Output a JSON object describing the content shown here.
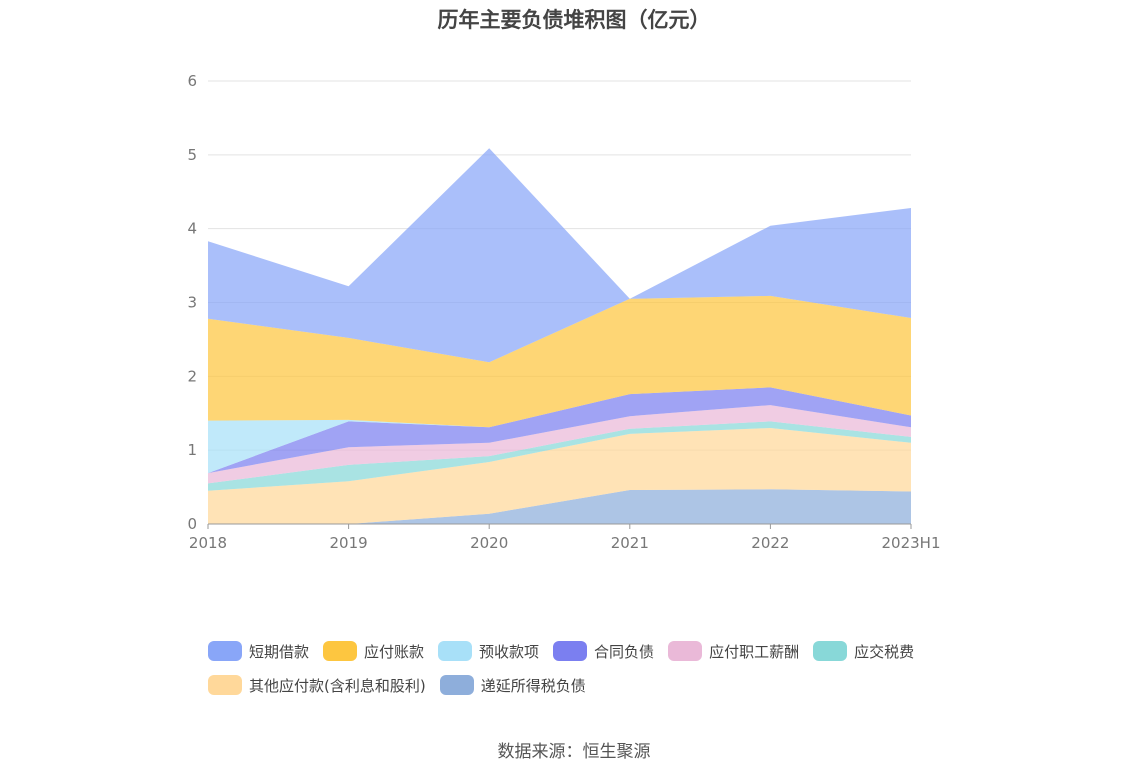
{
  "chart_data": {
    "type": "area",
    "title": "历年主要负债堆积图（亿元）",
    "categories": [
      "2018",
      "2019",
      "2020",
      "2021",
      "2022",
      "2023H1"
    ],
    "ylim": [
      0,
      6
    ],
    "yticks": [
      0,
      1,
      2,
      3,
      4,
      5,
      6
    ],
    "stacked": true,
    "grid": true,
    "legend_position": "bottom",
    "series": [
      {
        "name": "递延所得税负债",
        "color": "#8eaedb",
        "values": [
          0.0,
          0.0,
          0.14,
          0.46,
          0.47,
          0.44
        ]
      },
      {
        "name": "其他应付款(含利息和股利)",
        "color": "#ffd89a",
        "values": [
          0.45,
          0.58,
          0.7,
          0.76,
          0.83,
          0.66
        ]
      },
      {
        "name": "应交税费",
        "color": "#88d8d8",
        "values": [
          0.1,
          0.22,
          0.08,
          0.07,
          0.09,
          0.08
        ]
      },
      {
        "name": "应付职工薪酬",
        "color": "#eab9d8",
        "values": [
          0.14,
          0.24,
          0.18,
          0.17,
          0.22,
          0.13
        ]
      },
      {
        "name": "合同负债",
        "color": "#7b7ff0",
        "values": [
          0.0,
          0.35,
          0.21,
          0.3,
          0.24,
          0.16
        ]
      },
      {
        "name": "预收款项",
        "color": "#a8e0f8",
        "values": [
          0.71,
          0.02,
          0.0,
          0.0,
          0.0,
          0.0
        ]
      },
      {
        "name": "应付账款",
        "color": "#fdc640",
        "values": [
          1.38,
          1.11,
          0.88,
          1.29,
          1.24,
          1.32
        ]
      },
      {
        "name": "短期借款",
        "color": "#89a6f8",
        "values": [
          1.05,
          0.7,
          2.9,
          0.0,
          0.95,
          1.49
        ]
      }
    ],
    "legend_order": [
      "短期借款",
      "应付账款",
      "预收款项",
      "合同负债",
      "应付职工薪酬",
      "应交税费",
      "其他应付款(含利息和股利)",
      "递延所得税负债"
    ]
  },
  "source_label": "数据来源：恒生聚源"
}
